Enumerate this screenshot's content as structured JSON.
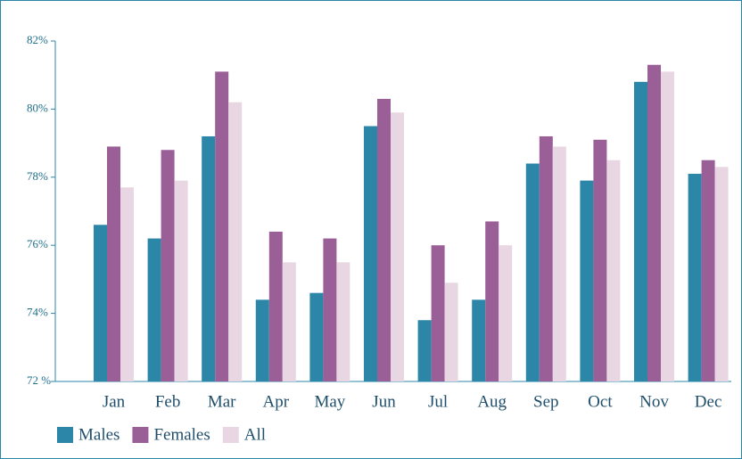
{
  "chart_data": {
    "type": "bar",
    "categories": [
      "Jan",
      "Feb",
      "Mar",
      "Apr",
      "May",
      "Jun",
      "Jul",
      "Aug",
      "Sep",
      "Oct",
      "Nov",
      "Dec"
    ],
    "series": [
      {
        "name": "Males",
        "color": "#2b86a8",
        "values": [
          76.6,
          76.2,
          79.2,
          74.4,
          74.6,
          79.5,
          73.8,
          74.4,
          78.4,
          77.9,
          80.8,
          78.1
        ]
      },
      {
        "name": "Females",
        "color": "#9b5f97",
        "values": [
          78.9,
          78.8,
          81.1,
          76.4,
          76.2,
          80.3,
          76.0,
          76.7,
          79.2,
          79.1,
          81.3,
          78.5
        ]
      },
      {
        "name": "All",
        "color": "#e8d7e3",
        "values": [
          77.7,
          77.9,
          80.2,
          75.5,
          75.5,
          79.9,
          74.9,
          76.0,
          78.9,
          78.5,
          81.1,
          78.3
        ]
      }
    ],
    "ylim": [
      72,
      82
    ],
    "yticks": [
      {
        "value": 72,
        "label": "72 %"
      },
      {
        "value": 74,
        "label": "74%"
      },
      {
        "value": 76,
        "label": "76%"
      },
      {
        "value": 78,
        "label": "78%"
      },
      {
        "value": 80,
        "label": "80%"
      },
      {
        "value": 82,
        "label": "82%"
      }
    ],
    "legend": "bottom-left"
  }
}
